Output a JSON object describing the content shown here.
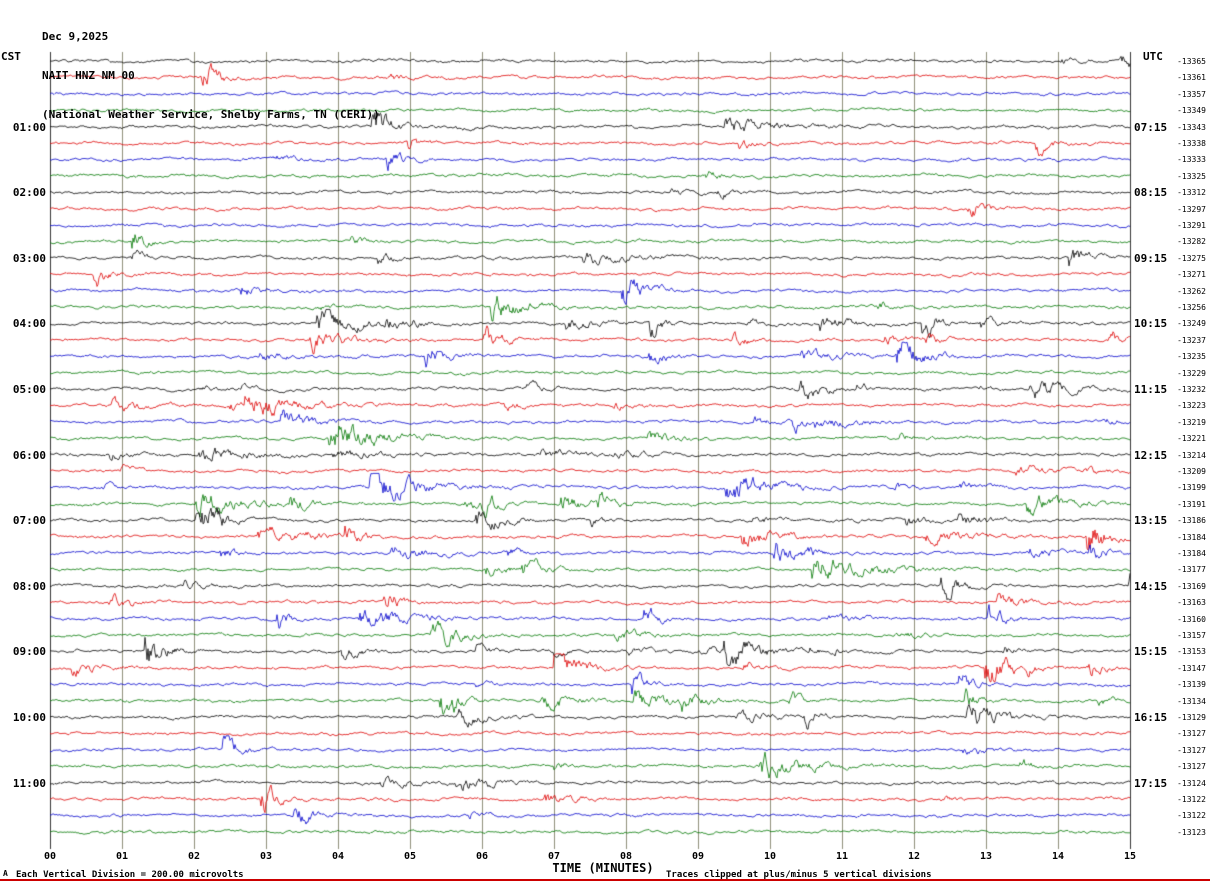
{
  "header": {
    "date": "Dec 9,2025",
    "station": "NAIT HNZ NM 00",
    "description": "(National Weather Service, Shelby Farms, TN (CERI))"
  },
  "left_axis": {
    "label": "CST"
  },
  "right_axis": {
    "label": "UTC"
  },
  "x_axis": {
    "label": "TIME (MINUTES)"
  },
  "footer": {
    "marker": "A",
    "left": "Each Vertical Division =  200.00 microvolts",
    "right": "Traces clipped at plus/minus 5 vertical divisions"
  },
  "chart_data": {
    "type": "line",
    "subtype": "helicorder-seismogram",
    "title": "NAIT HNZ NM 00 — Dec 9,2025",
    "xlabel": "TIME (MINUTES)",
    "x_range": [
      0,
      15
    ],
    "x_ticks": [
      "00",
      "01",
      "02",
      "03",
      "04",
      "05",
      "06",
      "07",
      "08",
      "09",
      "10",
      "11",
      "12",
      "13",
      "14",
      "15"
    ],
    "rows": 48,
    "traces_per_hour": 4,
    "row_duration_minutes": 15,
    "trace_color_cycle": [
      "#000000",
      "#dd0000",
      "#0000cc",
      "#007700"
    ],
    "grid_color": "#8f8f7a",
    "left_times_cst": [
      "01:00",
      "02:00",
      "03:00",
      "04:00",
      "05:00",
      "06:00",
      "07:00",
      "08:00",
      "09:00",
      "10:00",
      "11:00"
    ],
    "right_times_utc": [
      "07:15",
      "08:15",
      "09:15",
      "10:15",
      "11:15",
      "12:15",
      "13:15",
      "14:15",
      "15:15",
      "16:15",
      "17:15"
    ],
    "baseline_counts": [
      -13365,
      -13361,
      -13357,
      -13349,
      -13343,
      -13338,
      -13333,
      -13325,
      -13312,
      -13297,
      -13291,
      -13282,
      -13275,
      -13271,
      -13262,
      -13256,
      -13249,
      -13237,
      -13235,
      -13229,
      -13232,
      -13223,
      -13219,
      -13221,
      -13214,
      -13209,
      -13199,
      -13191,
      -13186,
      -13184,
      -13184,
      -13177,
      -13169,
      -13163,
      -13160,
      -13157,
      -13153,
      -13147,
      -13139,
      -13134,
      -13129,
      -13127,
      -13127,
      -13127,
      -13124,
      -13122,
      -13122,
      -13123
    ],
    "vertical_division_microvolts": "200.00",
    "clip_limit_divisions": 5,
    "legend": "off",
    "grid": "vertical-minute-lines"
  }
}
